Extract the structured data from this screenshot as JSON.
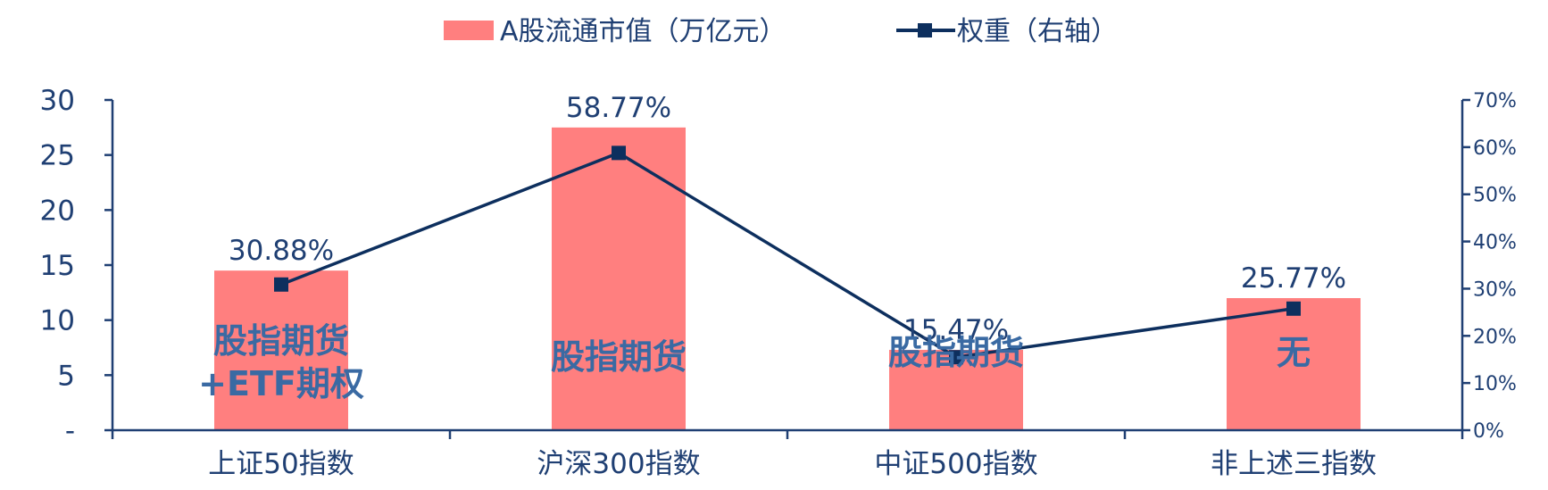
{
  "chart_data": {
    "type": "bar",
    "categories": [
      "上证50指数",
      "沪深300指数",
      "中证500指数",
      "非上述三指数"
    ],
    "series": [
      {
        "name": "A股流通市值（万亿元）",
        "type": "bar",
        "axis": "left",
        "color": "#ff7f7f",
        "values": [
          14.5,
          27.5,
          7.3,
          12.0
        ]
      },
      {
        "name": "权重（右轴）",
        "type": "line",
        "axis": "right",
        "color": "#0d2f5e",
        "values": [
          0.3088,
          0.5877,
          0.1547,
          0.2577
        ],
        "labels": [
          "30.88%",
          "58.77%",
          "15.47%",
          "25.77%"
        ]
      }
    ],
    "y_left": {
      "ylim": [
        0,
        30
      ],
      "ticks": [
        0,
        5,
        10,
        15,
        20,
        25,
        30
      ],
      "tick_labels": [
        "-",
        "5",
        "10",
        "15",
        "20",
        "25",
        "30"
      ]
    },
    "y_right": {
      "ylim": [
        0,
        0.7
      ],
      "ticks": [
        0,
        0.1,
        0.2,
        0.3,
        0.4,
        0.5,
        0.6,
        0.7
      ],
      "tick_labels": [
        "0%",
        "10%",
        "20%",
        "30%",
        "40%",
        "50%",
        "60%",
        "70%"
      ]
    },
    "annotations": [
      [
        "股指期货",
        "+ETF期权"
      ],
      [
        "股指期货"
      ],
      [
        "股指期货"
      ],
      [
        "无"
      ]
    ],
    "legend_position": "top-center",
    "grid": false
  }
}
